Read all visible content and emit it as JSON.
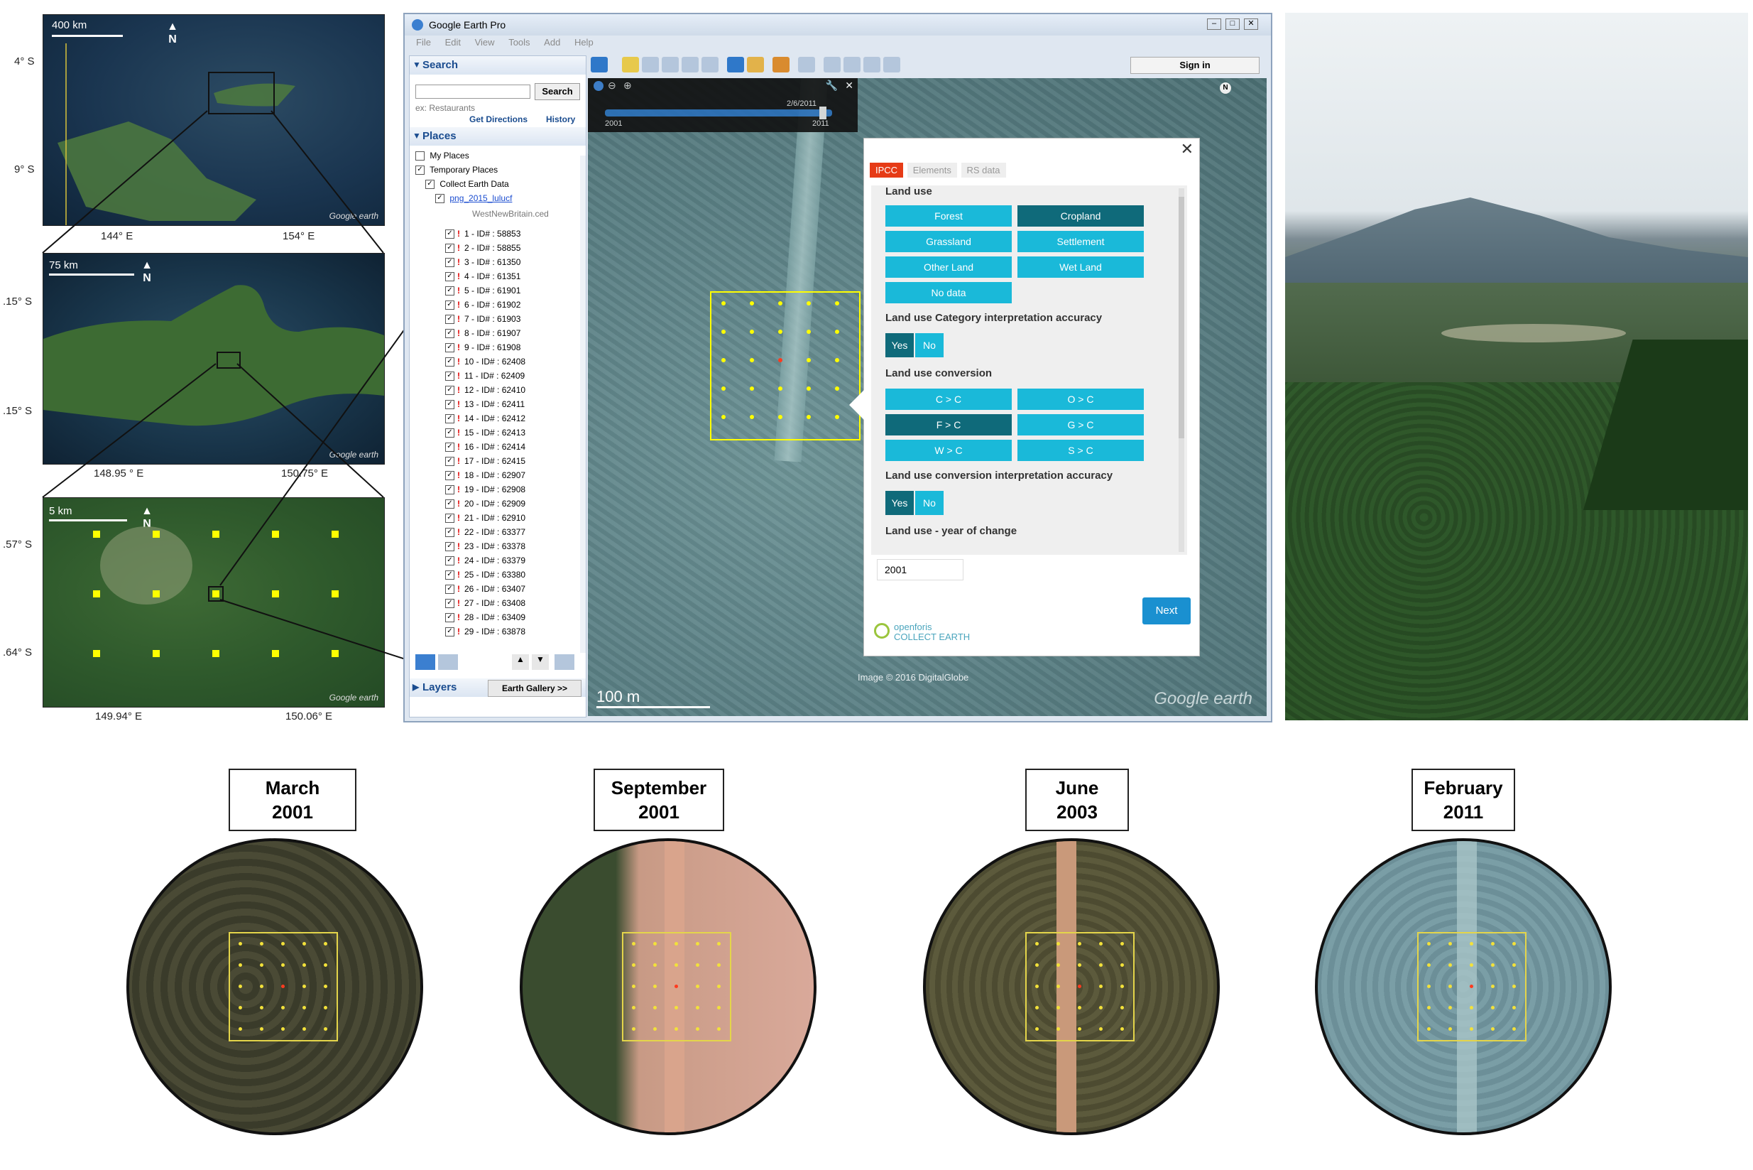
{
  "left_maps": {
    "map1": {
      "scale": "400 km",
      "north": "N",
      "lats": [
        "4° S",
        "9° S"
      ],
      "lons": [
        "144° E",
        "154° E"
      ],
      "watermark": "Google earth"
    },
    "map2": {
      "scale": "75 km",
      "north": "N",
      "lats": [
        ".15° S",
        ".15° S"
      ],
      "lons": [
        "148.95 ° E",
        "150.75° E"
      ],
      "watermark": "Google earth"
    },
    "map3": {
      "scale": "5 km",
      "north": "N",
      "lats": [
        ".57° S",
        ".64° S"
      ],
      "lons": [
        "149.94° E",
        "150.06° E"
      ],
      "watermark": "Google earth"
    }
  },
  "ge": {
    "title": "Google Earth Pro",
    "menu": [
      "File",
      "Edit",
      "View",
      "Tools",
      "Add",
      "Help"
    ],
    "sign_in": "Sign in",
    "search_header": "Search",
    "search_button": "Search",
    "search_example": "ex: Restaurants",
    "get_directions": "Get Directions",
    "history": "History",
    "places_header": "Places",
    "tree": {
      "my_places": "My Places",
      "temporary_places": "Temporary Places",
      "collect_earth_data": "Collect Earth Data",
      "project_link": "png_2015_lulucf",
      "ced_file": "WestNewBritain.ced"
    },
    "plots": [
      "1 - ID# : 58853",
      "2 - ID# : 58855",
      "3 - ID# : 61350",
      "4 - ID# : 61351",
      "5 - ID# : 61901",
      "6 - ID# : 61902",
      "7 - ID# : 61903",
      "8 - ID# : 61907",
      "9 - ID# : 61908",
      "10 - ID# : 62408",
      "11 - ID# : 62409",
      "12 - ID# : 62410",
      "13 - ID# : 62411",
      "14 - ID# : 62412",
      "15 - ID# : 62413",
      "16 - ID# : 62414",
      "17 - ID# : 62415",
      "18 - ID# : 62907",
      "19 - ID# : 62908",
      "20 - ID# : 62909",
      "21 - ID# : 62910",
      "22 - ID# : 63377",
      "23 - ID# : 63378",
      "24 - ID# : 63379",
      "25 - ID# : 63380",
      "26 - ID# : 63407",
      "27 - ID# : 63408",
      "28 - ID# : 63409",
      "29 - ID# : 63878"
    ],
    "layers_header": "Layers",
    "earth_gallery": "Earth Gallery >>",
    "timeslider": {
      "date": "2/6/2011",
      "start": "2001",
      "end": "2011"
    },
    "map_scale": "100 m",
    "image_credit": "Image © 2016 DigitalGlobe",
    "map_watermark": "Google earth",
    "north": "N"
  },
  "collect_earth": {
    "tabs": [
      "IPCC",
      "Elements",
      "RS data"
    ],
    "land_use_label": "Land use",
    "land_use_options": [
      "Forest",
      "Cropland",
      "Grassland",
      "Settlement",
      "Other Land",
      "Wet Land",
      "No data"
    ],
    "land_use_selected": "Cropland",
    "accuracy_label": "Land use Category interpretation accuracy",
    "yes": "Yes",
    "no": "No",
    "conversion_label": "Land use conversion",
    "conversion_options": [
      "C > C",
      "O > C",
      "F > C",
      "G > C",
      "W > C",
      "S > C"
    ],
    "conversion_selected": "F > C",
    "conversion_accuracy_label": "Land use conversion interpretation accuracy",
    "year_label": "Land use - year of change",
    "year_value": "2001",
    "next": "Next",
    "logo_line1": "openforis",
    "logo_line2": "COLLECT EARTH",
    "colors": {
      "button": "#1ab9d9",
      "selected": "#0f6a7a",
      "tab_active": "#e63b16",
      "next": "#1a90d0"
    }
  },
  "timeline": [
    {
      "month": "March",
      "year": "2001"
    },
    {
      "month": "September",
      "year": "2001"
    },
    {
      "month": "June",
      "year": "2003"
    },
    {
      "month": "February",
      "year": "2011"
    }
  ]
}
